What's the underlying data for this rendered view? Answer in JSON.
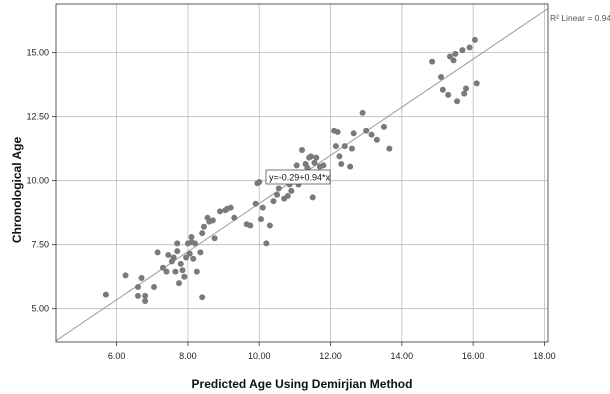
{
  "chart_data": {
    "type": "scatter",
    "xlabel": "Predicted Age Using Demirjian Method",
    "ylabel": "Chronological Age",
    "xlim": [
      4.3,
      18.1
    ],
    "ylim": [
      3.7,
      16.9
    ],
    "x_ticks": [
      6,
      8,
      10,
      12,
      14,
      16,
      18
    ],
    "x_tick_labels": [
      "6.00",
      "8.00",
      "10.00",
      "12.00",
      "14.00",
      "16.00",
      "18.00"
    ],
    "y_ticks": [
      5,
      7.5,
      10,
      12.5,
      15
    ],
    "y_tick_labels": [
      "5.00",
      "7.50",
      "10.00",
      "12.50",
      "15.00"
    ],
    "grid": true,
    "fit_line": {
      "intercept": -0.29,
      "slope": 0.94
    },
    "equation_label": "y=-0.29+0.94*x",
    "r_squared_label": "R² Linear = 0.942",
    "point_color": "#7a7a7a",
    "line_color": "#9a9a9a",
    "points": [
      [
        5.7,
        5.55
      ],
      [
        6.25,
        6.3
      ],
      [
        6.6,
        5.85
      ],
      [
        6.6,
        5.5
      ],
      [
        6.7,
        6.2
      ],
      [
        6.8,
        5.3
      ],
      [
        6.8,
        5.5
      ],
      [
        7.05,
        5.85
      ],
      [
        7.15,
        7.2
      ],
      [
        7.3,
        6.6
      ],
      [
        7.4,
        6.45
      ],
      [
        7.45,
        7.1
      ],
      [
        7.55,
        6.85
      ],
      [
        7.6,
        7.0
      ],
      [
        7.65,
        6.45
      ],
      [
        7.7,
        7.55
      ],
      [
        7.7,
        7.25
      ],
      [
        7.75,
        6.0
      ],
      [
        7.8,
        6.75
      ],
      [
        7.85,
        6.5
      ],
      [
        7.9,
        6.25
      ],
      [
        7.95,
        7.0
      ],
      [
        8.0,
        7.55
      ],
      [
        8.05,
        7.15
      ],
      [
        8.1,
        7.8
      ],
      [
        8.1,
        7.6
      ],
      [
        8.15,
        6.95
      ],
      [
        8.2,
        7.55
      ],
      [
        8.25,
        6.45
      ],
      [
        8.35,
        7.2
      ],
      [
        8.4,
        5.45
      ],
      [
        8.4,
        7.95
      ],
      [
        8.45,
        8.2
      ],
      [
        8.55,
        8.55
      ],
      [
        8.6,
        8.4
      ],
      [
        8.7,
        8.45
      ],
      [
        8.75,
        7.75
      ],
      [
        8.9,
        8.8
      ],
      [
        9.05,
        8.85
      ],
      [
        9.1,
        8.9
      ],
      [
        9.2,
        8.95
      ],
      [
        9.3,
        8.55
      ],
      [
        9.65,
        8.3
      ],
      [
        9.75,
        8.25
      ],
      [
        9.9,
        9.1
      ],
      [
        10.05,
        8.5
      ],
      [
        10.1,
        8.95
      ],
      [
        10.2,
        7.55
      ],
      [
        10.3,
        8.25
      ],
      [
        10.4,
        9.2
      ],
      [
        10.5,
        9.45
      ],
      [
        10.55,
        9.7
      ],
      [
        10.7,
        9.3
      ],
      [
        10.8,
        9.4
      ],
      [
        10.9,
        9.6
      ],
      [
        9.95,
        9.9
      ],
      [
        10.0,
        9.95
      ],
      [
        10.45,
        10.05
      ],
      [
        10.55,
        10.2
      ],
      [
        10.75,
        10.25
      ],
      [
        10.85,
        9.85
      ],
      [
        11.05,
        10.6
      ],
      [
        11.1,
        9.85
      ],
      [
        11.15,
        10.0
      ],
      [
        11.2,
        11.2
      ],
      [
        11.3,
        10.65
      ],
      [
        11.35,
        10.5
      ],
      [
        11.4,
        10.9
      ],
      [
        11.45,
        10.95
      ],
      [
        11.5,
        9.35
      ],
      [
        11.55,
        10.7
      ],
      [
        11.6,
        10.9
      ],
      [
        11.7,
        10.55
      ],
      [
        11.8,
        10.6
      ],
      [
        12.1,
        11.95
      ],
      [
        12.15,
        11.35
      ],
      [
        12.2,
        11.9
      ],
      [
        12.25,
        10.95
      ],
      [
        12.3,
        10.65
      ],
      [
        12.4,
        11.35
      ],
      [
        12.55,
        10.55
      ],
      [
        12.6,
        11.25
      ],
      [
        12.65,
        11.85
      ],
      [
        12.9,
        12.65
      ],
      [
        13.0,
        11.95
      ],
      [
        13.15,
        11.8
      ],
      [
        13.3,
        11.6
      ],
      [
        13.5,
        12.1
      ],
      [
        13.65,
        11.25
      ],
      [
        14.85,
        14.65
      ],
      [
        15.1,
        14.05
      ],
      [
        15.15,
        13.55
      ],
      [
        15.3,
        13.35
      ],
      [
        15.35,
        14.85
      ],
      [
        15.45,
        14.7
      ],
      [
        15.5,
        14.95
      ],
      [
        15.55,
        13.1
      ],
      [
        15.7,
        15.1
      ],
      [
        15.75,
        13.4
      ],
      [
        15.8,
        13.6
      ],
      [
        15.9,
        15.2
      ],
      [
        16.05,
        15.5
      ],
      [
        16.1,
        13.8
      ]
    ]
  }
}
